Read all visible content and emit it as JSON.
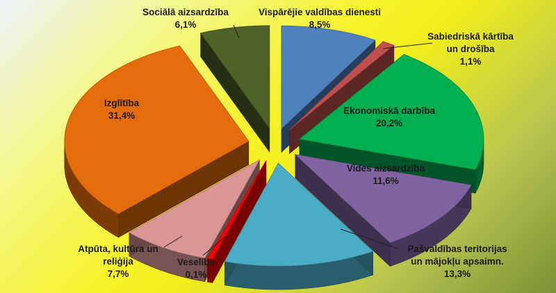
{
  "chart_data": {
    "type": "pie",
    "style": "3d-exploded",
    "title": "",
    "legend": "none",
    "slices": [
      {
        "label": [
          "Vispārējie valdības dienesti"
        ],
        "pct": "8,5%",
        "value": 8.5,
        "color": "#4f81bd"
      },
      {
        "label": [
          "Sabiedriskā kārtība",
          "un drošība"
        ],
        "pct": "1,1%",
        "value": 1.1,
        "color": "#c0504d"
      },
      {
        "label": [
          "Ekonomiskā darbība"
        ],
        "pct": "20,2%",
        "value": 20.2,
        "color": "#00b050"
      },
      {
        "label": [
          "Vides aizsardzība"
        ],
        "pct": "11,6%",
        "value": 11.6,
        "color": "#8064a2"
      },
      {
        "label": [
          "Pašvaldības teritorijas",
          "un mājokļu apsaimn."
        ],
        "pct": "13,3%",
        "value": 13.3,
        "color": "#4bacc6"
      },
      {
        "label": [
          "Veselība"
        ],
        "pct": "0,1%",
        "value": 0.1,
        "color": "#ff0000"
      },
      {
        "label": [
          "Atpūta, kultūra un",
          "reliģija"
        ],
        "pct": "7,7%",
        "value": 7.7,
        "color": "#d99694"
      },
      {
        "label": [
          "Izglītība"
        ],
        "pct": "31,4%",
        "value": 31.4,
        "color": "#e46c0a"
      },
      {
        "label": [
          "Sociālā aizsardzība"
        ],
        "pct": "6,1%",
        "value": 6.1,
        "color": "#4f6228"
      }
    ]
  }
}
